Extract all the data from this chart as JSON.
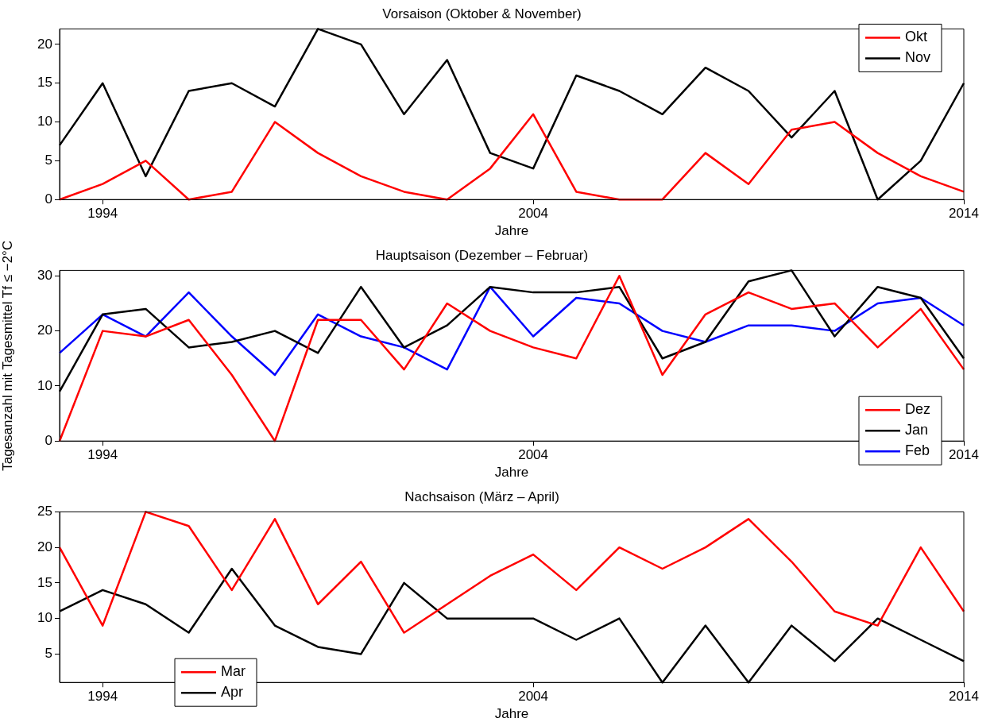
{
  "chart_data": [
    {
      "type": "line",
      "title": "Vorsaison (Oktober & November)",
      "xlabel": "Jahre",
      "x": [
        1993,
        1994,
        1995,
        1996,
        1997,
        1998,
        1999,
        2000,
        2001,
        2002,
        2003,
        2004,
        2005,
        2006,
        2007,
        2008,
        2009,
        2010,
        2011,
        2012,
        2013,
        2014
      ],
      "xlim": [
        1993,
        2014
      ],
      "xticks": [
        1994,
        2004,
        2014
      ],
      "ylim": [
        0,
        22
      ],
      "yticks": [
        0,
        5,
        10,
        15,
        20
      ],
      "grid": false,
      "legend": "top right",
      "marker": "none",
      "line_style": "solid",
      "series": [
        {
          "name": "Okt",
          "color": "#ff0000",
          "values": [
            0,
            2,
            5,
            0,
            1,
            10,
            6,
            3,
            1,
            0,
            4,
            11,
            1,
            0,
            0,
            6,
            2,
            9,
            10,
            6,
            3,
            1
          ]
        },
        {
          "name": "Nov",
          "color": "#000000",
          "values": [
            7,
            15,
            3,
            14,
            15,
            12,
            22,
            20,
            11,
            18,
            6,
            4,
            16,
            14,
            11,
            17,
            14,
            8,
            14,
            0,
            5,
            15
          ]
        }
      ]
    },
    {
      "type": "line",
      "title": "Hauptsaison (Dezember – Februar)",
      "xlabel": "Jahre",
      "ylabel": "Tagesanzahl mit Tagesmittel Tf ≤ −2°C",
      "x": [
        1993,
        1994,
        1995,
        1996,
        1997,
        1998,
        1999,
        2000,
        2001,
        2002,
        2003,
        2004,
        2005,
        2006,
        2007,
        2008,
        2009,
        2010,
        2011,
        2012,
        2013,
        2014
      ],
      "xlim": [
        1993,
        2014
      ],
      "xticks": [
        1994,
        2004,
        2014
      ],
      "ylim": [
        0,
        31
      ],
      "yticks": [
        0,
        10,
        20,
        30
      ],
      "grid": false,
      "legend": "bottom right",
      "marker": "none",
      "line_style": "solid",
      "series": [
        {
          "name": "Dez",
          "color": "#ff0000",
          "values": [
            0,
            20,
            19,
            22,
            12,
            0,
            22,
            22,
            13,
            25,
            20,
            17,
            15,
            30,
            12,
            23,
            27,
            24,
            25,
            17,
            24,
            13
          ]
        },
        {
          "name": "Jan",
          "color": "#000000",
          "values": [
            9,
            23,
            24,
            17,
            18,
            20,
            16,
            28,
            17,
            21,
            28,
            27,
            27,
            28,
            15,
            18,
            29,
            31,
            19,
            28,
            26,
            15
          ]
        },
        {
          "name": "Feb",
          "color": "#0000ff",
          "values": [
            16,
            23,
            19,
            27,
            19,
            12,
            23,
            19,
            17,
            13,
            28,
            19,
            26,
            25,
            20,
            18,
            21,
            21,
            20,
            25,
            26,
            21
          ]
        }
      ]
    },
    {
      "type": "line",
      "title": "Nachsaison (März – April)",
      "xlabel": "Jahre",
      "x": [
        1993,
        1994,
        1995,
        1996,
        1997,
        1998,
        1999,
        2000,
        2001,
        2002,
        2003,
        2004,
        2005,
        2006,
        2007,
        2008,
        2009,
        2010,
        2011,
        2012,
        2013,
        2014
      ],
      "xlim": [
        1993,
        2014
      ],
      "xticks": [
        1994,
        2004,
        2014
      ],
      "ylim": [
        1,
        25
      ],
      "yticks": [
        5,
        10,
        15,
        20,
        25
      ],
      "grid": false,
      "legend": "bottom left",
      "marker": "none",
      "line_style": "solid",
      "series": [
        {
          "name": "Mar",
          "color": "#ff0000",
          "values": [
            20,
            9,
            25,
            23,
            14,
            24,
            12,
            18,
            8,
            12,
            16,
            19,
            14,
            20,
            17,
            20,
            24,
            18,
            11,
            9,
            20,
            11
          ]
        },
        {
          "name": "Apr",
          "color": "#000000",
          "values": [
            11,
            14,
            12,
            8,
            17,
            9,
            6,
            5,
            15,
            10,
            10,
            10,
            7,
            10,
            1,
            9,
            1,
            9,
            4,
            10,
            7,
            4
          ]
        }
      ]
    }
  ]
}
